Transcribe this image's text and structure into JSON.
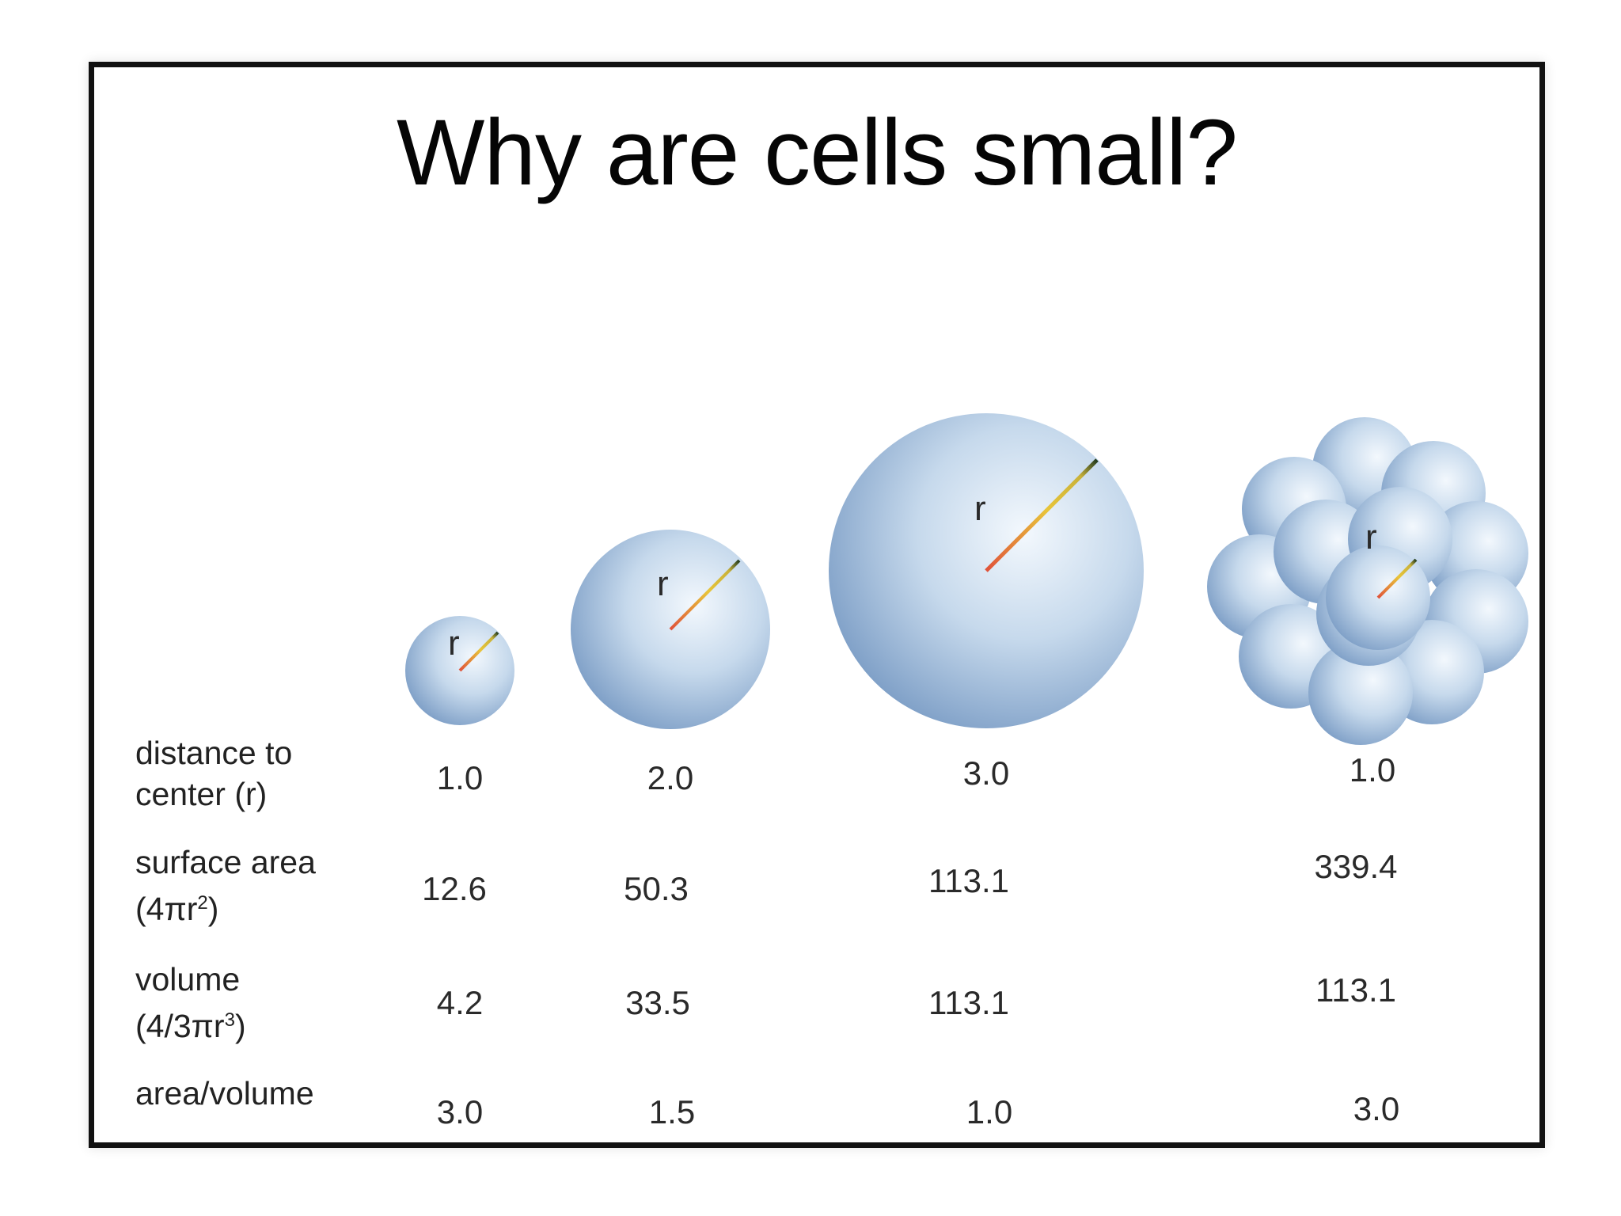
{
  "title": "Why are cells small?",
  "radius_marker": "r",
  "rows": {
    "distance": {
      "label_line1": "distance to",
      "label_line2": "center (r)"
    },
    "surface": {
      "label_line1": "surface area",
      "label_formula_base": "(4πr",
      "label_formula_exp": "2",
      "label_formula_end": ")"
    },
    "volume": {
      "label_line1": "volume",
      "label_formula_base": "(4/3πr",
      "label_formula_exp": "3",
      "label_formula_end": ")"
    },
    "ratio": {
      "label_line1": "area/volume"
    }
  },
  "columns": [
    {
      "id": "small",
      "radius": "1.0",
      "surface_area": "12.6",
      "volume": "4.2",
      "area_volume": "3.0"
    },
    {
      "id": "medium",
      "radius": "2.0",
      "surface_area": "50.3",
      "volume": "33.5",
      "area_volume": "1.5"
    },
    {
      "id": "large",
      "radius": "3.0",
      "surface_area": "113.1",
      "volume": "113.1",
      "area_volume": "1.0"
    },
    {
      "id": "cluster",
      "radius": "1.0",
      "surface_area": "339.4",
      "volume": "113.1",
      "area_volume": "3.0"
    }
  ],
  "colors": {
    "sphere_light": "#eef4fb",
    "sphere_mid": "#b3cbe4",
    "sphere_dark": "#6f93bf",
    "radius_line_start": "#e0523a",
    "radius_line_mid": "#e8c53a",
    "radius_line_end": "#1f3a1f"
  }
}
